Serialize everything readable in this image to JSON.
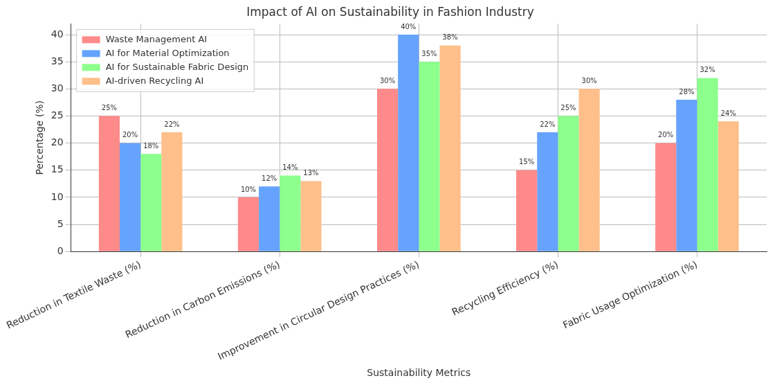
{
  "chart_data": {
    "type": "bar",
    "title": "Impact of AI on Sustainability in Fashion Industry",
    "xlabel": "Sustainability Metrics",
    "ylabel": "Percentage (%)",
    "categories": [
      "Reduction in Textile Waste (%)",
      "Reduction in Carbon Emissions (%)",
      "Improvement in Circular Design Practices (%)",
      "Recycling Efficiency (%)",
      "Fabric Usage Optimization (%)"
    ],
    "series": [
      {
        "name": "Waste Management AI",
        "color": "#ff8a8a",
        "values": [
          25,
          10,
          30,
          15,
          20
        ],
        "value_labels": [
          "25%",
          "10%",
          "30%",
          "15%",
          "20%"
        ]
      },
      {
        "name": "AI for Material Optimization",
        "color": "#66a3ff",
        "values": [
          20,
          12,
          40,
          22,
          28
        ],
        "value_labels": [
          "20%",
          "12%",
          "40%",
          "22%",
          "28%"
        ]
      },
      {
        "name": "AI for Sustainable Fabric Design",
        "color": "#8cff8c",
        "values": [
          18,
          14,
          35,
          25,
          32
        ],
        "value_labels": [
          "18%",
          "14%",
          "35%",
          "25%",
          "32%"
        ]
      },
      {
        "name": "AI-driven Recycling AI",
        "color": "#ffbf8a",
        "values": [
          22,
          13,
          38,
          30,
          24
        ],
        "value_labels": [
          "22%",
          "13%",
          "38%",
          "30%",
          "24%"
        ]
      }
    ],
    "ylim": [
      0,
      42
    ],
    "yticks": [
      0,
      5,
      10,
      15,
      20,
      25,
      30,
      35,
      40
    ],
    "grid": true,
    "legend": "top left"
  }
}
